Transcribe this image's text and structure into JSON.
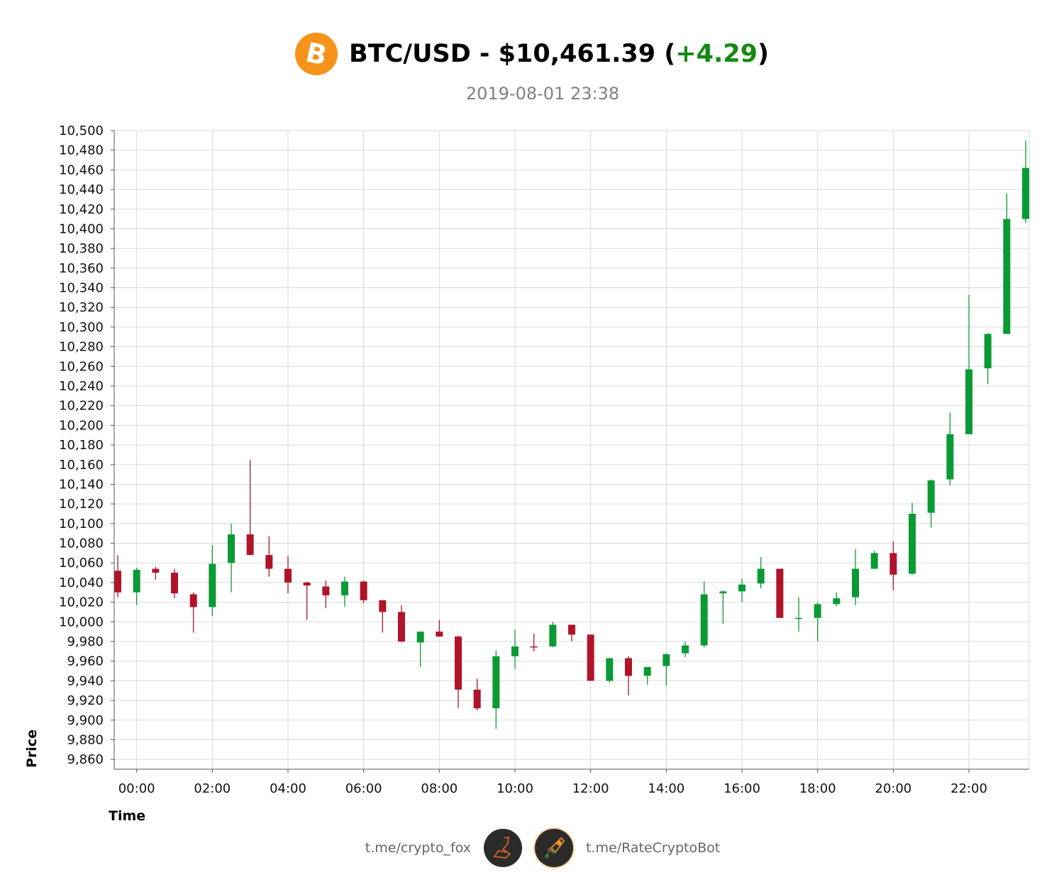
{
  "header": {
    "pair": "BTC/USD",
    "separator": " - ",
    "price": "$10,461.39",
    "open_paren": " (",
    "change": "+4.29",
    "close_paren": ")",
    "timestamp": "2019-08-01 23:38",
    "logo_glyph": "₿"
  },
  "footer": {
    "left_link": "t.me/crypto_fox",
    "right_link": "t.me/RateCryptoBot"
  },
  "colors": {
    "up": "#0a9a35",
    "down": "#b01428",
    "grid": "#d9d9d9",
    "brand": "#f7931a"
  },
  "chart_data": {
    "type": "candlestick",
    "title": "BTC/USD - $10,461.39 (+4.29)",
    "subtitle": "2019-08-01 23:38",
    "xlabel": "Time",
    "ylabel": "Price",
    "ylim": [
      9850,
      10500
    ],
    "grid": true,
    "interval_minutes": 30,
    "yticks": [
      "9,860",
      "9,880",
      "9,900",
      "9,920",
      "9,940",
      "9,960",
      "9,980",
      "10,000",
      "10,020",
      "10,040",
      "10,060",
      "10,080",
      "10,100",
      "10,120",
      "10,140",
      "10,160",
      "10,180",
      "10,200",
      "10,220",
      "10,240",
      "10,260",
      "10,280",
      "10,300",
      "10,320",
      "10,340",
      "10,360",
      "10,380",
      "10,400",
      "10,420",
      "10,440",
      "10,460",
      "10,480",
      "10,500"
    ],
    "xticks": [
      "00:00",
      "02:00",
      "04:00",
      "06:00",
      "08:00",
      "10:00",
      "12:00",
      "14:00",
      "16:00",
      "18:00",
      "20:00",
      "22:00"
    ],
    "candles": [
      {
        "t": "23:30",
        "o": 10052,
        "h": 10068,
        "l": 10025,
        "c": 10030
      },
      {
        "t": "00:00",
        "o": 10030,
        "h": 10055,
        "l": 10017,
        "c": 10053
      },
      {
        "t": "00:30",
        "o": 10054,
        "h": 10056,
        "l": 10043,
        "c": 10050
      },
      {
        "t": "01:00",
        "o": 10050,
        "h": 10054,
        "l": 10024,
        "c": 10029
      },
      {
        "t": "01:30",
        "o": 10028,
        "h": 10030,
        "l": 9989,
        "c": 10015
      },
      {
        "t": "02:00",
        "o": 10015,
        "h": 10078,
        "l": 10006,
        "c": 10059
      },
      {
        "t": "02:30",
        "o": 10060,
        "h": 10100,
        "l": 10030,
        "c": 10089
      },
      {
        "t": "03:00",
        "o": 10089,
        "h": 10165,
        "l": 10068,
        "c": 10068
      },
      {
        "t": "03:30",
        "o": 10068,
        "h": 10087,
        "l": 10046,
        "c": 10054
      },
      {
        "t": "04:00",
        "o": 10054,
        "h": 10067,
        "l": 10029,
        "c": 10040
      },
      {
        "t": "04:30",
        "o": 10040,
        "h": 10041,
        "l": 10002,
        "c": 10037
      },
      {
        "t": "05:00",
        "o": 10036,
        "h": 10042,
        "l": 10014,
        "c": 10027
      },
      {
        "t": "05:30",
        "o": 10027,
        "h": 10046,
        "l": 10015,
        "c": 10041
      },
      {
        "t": "06:00",
        "o": 10041,
        "h": 10042,
        "l": 10019,
        "c": 10022
      },
      {
        "t": "06:30",
        "o": 10022,
        "h": 10022,
        "l": 9989,
        "c": 10010
      },
      {
        "t": "07:00",
        "o": 10010,
        "h": 10017,
        "l": 9979,
        "c": 9980
      },
      {
        "t": "07:30",
        "o": 9979,
        "h": 9990,
        "l": 9954,
        "c": 9990
      },
      {
        "t": "08:00",
        "o": 9990,
        "h": 10002,
        "l": 9985,
        "c": 9985
      },
      {
        "t": "08:30",
        "o": 9985,
        "h": 9986,
        "l": 9912,
        "c": 9931
      },
      {
        "t": "09:00",
        "o": 9931,
        "h": 9942,
        "l": 9910,
        "c": 9912
      },
      {
        "t": "09:30",
        "o": 9912,
        "h": 9971,
        "l": 9891,
        "c": 9965
      },
      {
        "t": "10:00",
        "o": 9965,
        "h": 9992,
        "l": 9952,
        "c": 9975
      },
      {
        "t": "10:30",
        "o": 9975,
        "h": 9988,
        "l": 9970,
        "c": 9974
      },
      {
        "t": "11:00",
        "o": 9975,
        "h": 10000,
        "l": 9974,
        "c": 9997
      },
      {
        "t": "11:30",
        "o": 9997,
        "h": 9997,
        "l": 9980,
        "c": 9987
      },
      {
        "t": "12:00",
        "o": 9987,
        "h": 9987,
        "l": 9940,
        "c": 9940
      },
      {
        "t": "12:30",
        "o": 9940,
        "h": 9963,
        "l": 9938,
        "c": 9963
      },
      {
        "t": "13:00",
        "o": 9963,
        "h": 9965,
        "l": 9925,
        "c": 9945
      },
      {
        "t": "13:30",
        "o": 9945,
        "h": 9954,
        "l": 9936,
        "c": 9954
      },
      {
        "t": "14:00",
        "o": 9955,
        "h": 9968,
        "l": 9935,
        "c": 9967
      },
      {
        "t": "14:30",
        "o": 9968,
        "h": 9980,
        "l": 9964,
        "c": 9976
      },
      {
        "t": "15:00",
        "o": 9976,
        "h": 10041,
        "l": 9974,
        "c": 10028
      },
      {
        "t": "15:30",
        "o": 10029,
        "h": 10032,
        "l": 9998,
        "c": 10031
      },
      {
        "t": "16:00",
        "o": 10031,
        "h": 10044,
        "l": 10020,
        "c": 10038
      },
      {
        "t": "16:30",
        "o": 10039,
        "h": 10066,
        "l": 10034,
        "c": 10054
      },
      {
        "t": "17:00",
        "o": 10054,
        "h": 10054,
        "l": 10004,
        "c": 10004
      },
      {
        "t": "17:30",
        "o": 10004,
        "h": 10025,
        "l": 9990,
        "c": 10004
      },
      {
        "t": "18:00",
        "o": 10004,
        "h": 10020,
        "l": 9980,
        "c": 10018
      },
      {
        "t": "18:30",
        "o": 10018,
        "h": 10030,
        "l": 10016,
        "c": 10024
      },
      {
        "t": "19:00",
        "o": 10025,
        "h": 10074,
        "l": 10017,
        "c": 10054
      },
      {
        "t": "19:30",
        "o": 10054,
        "h": 10072,
        "l": 10054,
        "c": 10070
      },
      {
        "t": "20:00",
        "o": 10070,
        "h": 10082,
        "l": 10032,
        "c": 10048
      },
      {
        "t": "20:30",
        "o": 10049,
        "h": 10121,
        "l": 10048,
        "c": 10110
      },
      {
        "t": "21:00",
        "o": 10111,
        "h": 10145,
        "l": 10096,
        "c": 10144
      },
      {
        "t": "21:30",
        "o": 10145,
        "h": 10213,
        "l": 10139,
        "c": 10191
      },
      {
        "t": "22:00",
        "o": 10191,
        "h": 10333,
        "l": 10191,
        "c": 10257
      },
      {
        "t": "22:30",
        "o": 10258,
        "h": 10294,
        "l": 10242,
        "c": 10293
      },
      {
        "t": "23:00",
        "o": 10293,
        "h": 10436,
        "l": 10293,
        "c": 10410
      },
      {
        "t": "23:30",
        "o": 10410,
        "h": 10490,
        "l": 10406,
        "c": 10462
      }
    ]
  }
}
